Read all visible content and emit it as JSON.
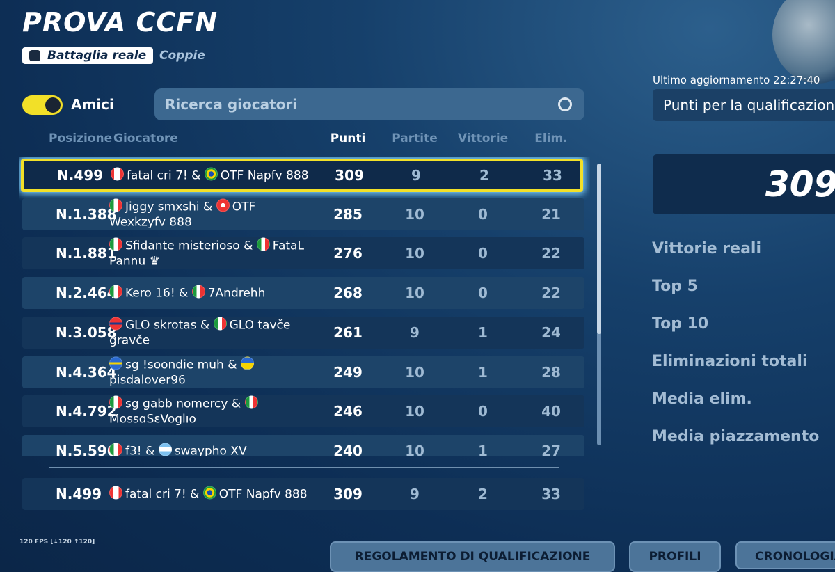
{
  "header": {
    "title": "PROVA CCFN",
    "mode": "Battaglia reale",
    "team_size": "Coppie"
  },
  "filter": {
    "toggle_label": "Amici",
    "search_placeholder": "Ricerca giocatori"
  },
  "table": {
    "columns": [
      "Posizione",
      "Giocatore",
      "Punti",
      "Partite",
      "Vittorie",
      "Elim."
    ],
    "joiner": "&",
    "rows": [
      {
        "rank": "N.499",
        "player1": "fatal cri 7!",
        "player2": "OTF Napfv 888",
        "points": 309,
        "matches": 9,
        "wins": 2,
        "elims": 33
      },
      {
        "rank": "N.1.388",
        "player1": "Jiggy smxshi",
        "player2": "OTF Wexkzyfv 888",
        "points": 285,
        "matches": 10,
        "wins": 0,
        "elims": 21
      },
      {
        "rank": "N.1.881",
        "player1": "Sfidante misterioso",
        "player2": "FataL Pannu ♛",
        "points": 276,
        "matches": 10,
        "wins": 0,
        "elims": 22
      },
      {
        "rank": "N.2.464",
        "player1": "Kero 16!",
        "player2": "7Andrehh",
        "points": 268,
        "matches": 10,
        "wins": 0,
        "elims": 22
      },
      {
        "rank": "N.3.058",
        "player1": "GLO skrotas",
        "player2": "GLO tavče gravče",
        "points": 261,
        "matches": 9,
        "wins": 1,
        "elims": 24
      },
      {
        "rank": "N.4.364",
        "player1": "sg !soondie muh",
        "player2": "pisdalover96",
        "points": 249,
        "matches": 10,
        "wins": 1,
        "elims": 28
      },
      {
        "rank": "N.4.792",
        "player1": "sg gabb nomercy",
        "player2": "MossɑSεVoglıo",
        "points": 246,
        "matches": 10,
        "wins": 0,
        "elims": 40
      },
      {
        "rank": "N.5.596",
        "player1": "f3!",
        "player2": "swaypho XV",
        "points": 240,
        "matches": 10,
        "wins": 1,
        "elims": 27
      }
    ],
    "pinned": {
      "rank": "N.499",
      "player1": "fatal cri 7!",
      "player2": "OTF Napfv 888",
      "points": 309,
      "matches": 9,
      "wins": 2,
      "elims": 33
    }
  },
  "summary": {
    "updated": "Ultimo aggiornamento 22:27:40",
    "metric": "Punti per la qualificazione",
    "points": 309,
    "stats": [
      "Vittorie reali",
      "Top 5",
      "Top 10",
      "Eliminazioni totali",
      "Media elim.",
      "Media piazzamento"
    ]
  },
  "footer": {
    "fps": "120 FPS [↓120 ↑120]",
    "buttons": [
      "REGOLAMENTO DI QUALIFICAZIONE",
      "PROFILI",
      "CRONOLOGIA"
    ]
  }
}
